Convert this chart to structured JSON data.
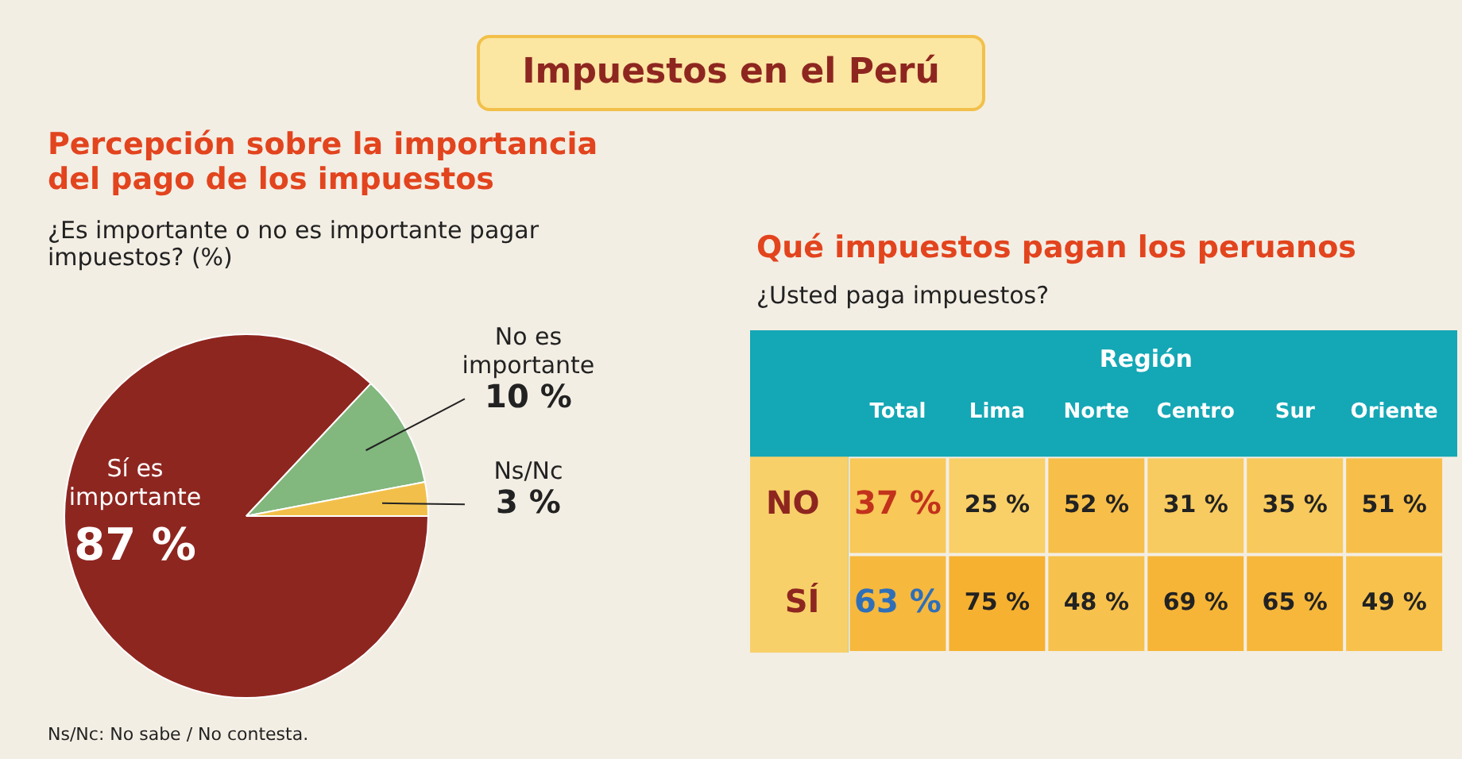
{
  "chart_data": [
    {
      "type": "pie",
      "title": "Percepción sobre la importancia del pago de los impuestos",
      "subtitle": "¿Es importante o no es importante pagar impuestos? (%)",
      "categories": [
        "Sí es importante",
        "No es importante",
        "Ns/Nc"
      ],
      "values": [
        87,
        10,
        3
      ],
      "colors": [
        "#8e2620",
        "#82b77e",
        "#f2c04a"
      ],
      "value_labels": [
        "87 %",
        "10 %",
        "3 %"
      ],
      "annotations": [
        "Impuestos en el Perú",
        "Ns/Nc: No sabe / No contesta."
      ]
    },
    {
      "type": "heatmap",
      "title": "Qué impuestos pagan los peruanos",
      "subtitle": "¿Usted paga impuestos?",
      "xlabel": "Región",
      "categories": [
        "Total",
        "Lima",
        "Norte",
        "Centro",
        "Sur",
        "Oriente"
      ],
      "y_categories": [
        "NO",
        "SÍ"
      ],
      "cells": [
        [
          37,
          25,
          52,
          31,
          35,
          51
        ],
        [
          63,
          75,
          48,
          69,
          65,
          49
        ]
      ],
      "cell_labels": [
        [
          "37 %",
          "25 %",
          "52 %",
          "31 %",
          "35 %",
          "51 %"
        ],
        [
          "63 %",
          "75 %",
          "48 %",
          "69 %",
          "65 %",
          "49 %"
        ]
      ]
    }
  ]
}
